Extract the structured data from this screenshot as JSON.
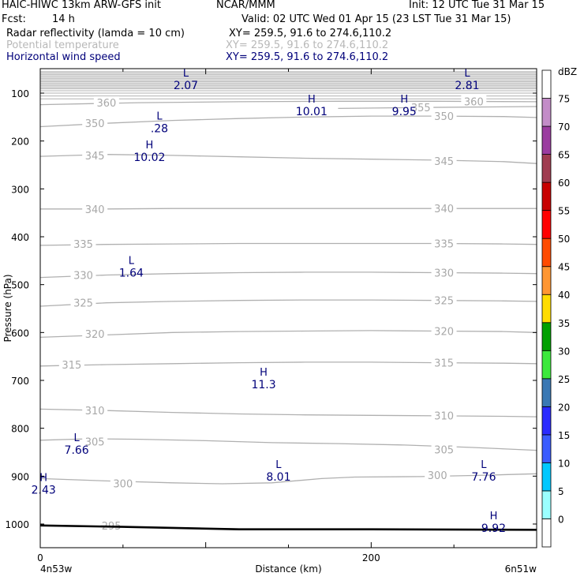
{
  "header": {
    "title_left": "HAIC-HIWC 13km ARW-GFS init",
    "title_org": "NCAR/MMM",
    "init": "Init: 12 UTC Tue 31 Mar 15",
    "fcst_label": "Fcst:",
    "fcst_value": "14 h",
    "valid": "Valid: 02 UTC Wed 01 Apr 15 (23 LST Tue 31 Mar 15)",
    "fields": [
      {
        "name": "Radar reflectivity (lamda = 10 cm)",
        "xy": "XY= 259.5, 91.6 to 274.6,110.2",
        "color": "#000000"
      },
      {
        "name": "Potential temperature",
        "xy": "XY= 259.5, 91.6 to 274.6,110.2",
        "color": "#b8b8b8"
      },
      {
        "name": "Horizontal wind speed",
        "xy": "XY= 259.5, 91.6 to 274.6,110.2",
        "color": "#00007a"
      }
    ]
  },
  "colors": {
    "theta": "#b0b0b0",
    "wind": "#00007a",
    "terrain": "#000000"
  },
  "chart_data": {
    "type": "cross-section",
    "ylabel": "Pressure (hPa)",
    "xlabel": "Distance (km)",
    "x_start_label": "4n53w",
    "x_end_label": "6n51w",
    "xlim": [
      0,
      300
    ],
    "x_ticks": [
      {
        "v": 0,
        "label": "0"
      },
      {
        "v": 200,
        "label": "200"
      }
    ],
    "y_ticks": [
      100,
      200,
      300,
      400,
      500,
      600,
      700,
      800,
      900,
      1000
    ],
    "ylim": [
      50,
      1020
    ],
    "theta_contours": [
      {
        "value": 295,
        "points": [
          [
            0,
            1003
          ],
          [
            40,
            1005
          ],
          [
            80,
            1008
          ],
          [
            120,
            1010
          ],
          [
            160,
            1011
          ],
          [
            200,
            1011
          ],
          [
            240,
            1011
          ],
          [
            280,
            1012
          ],
          [
            300,
            1012
          ]
        ],
        "labels": [
          [
            43,
            1003,
            "295"
          ]
        ]
      },
      {
        "value": 300,
        "points": [
          [
            0,
            905
          ],
          [
            40,
            910
          ],
          [
            80,
            914
          ],
          [
            110,
            916
          ],
          [
            140,
            914
          ],
          [
            170,
            905
          ],
          [
            190,
            902
          ],
          [
            230,
            901
          ],
          [
            270,
            898
          ],
          [
            300,
            895
          ]
        ],
        "labels": [
          [
            50,
            915,
            "300"
          ],
          [
            240,
            898,
            "300"
          ]
        ]
      },
      {
        "value": 305,
        "points": [
          [
            0,
            825
          ],
          [
            30,
            822
          ],
          [
            60,
            823
          ],
          [
            100,
            826
          ],
          [
            140,
            830
          ],
          [
            180,
            832
          ],
          [
            220,
            835
          ],
          [
            260,
            840
          ],
          [
            300,
            846
          ]
        ],
        "labels": [
          [
            33,
            828,
            "305"
          ],
          [
            244,
            844,
            "305"
          ]
        ]
      },
      {
        "value": 310,
        "points": [
          [
            0,
            760
          ],
          [
            40,
            763
          ],
          [
            80,
            767
          ],
          [
            120,
            770
          ],
          [
            160,
            772
          ],
          [
            200,
            773
          ],
          [
            240,
            774
          ],
          [
            280,
            775
          ],
          [
            300,
            776
          ]
        ],
        "labels": [
          [
            33,
            763,
            "310"
          ],
          [
            244,
            773,
            "310"
          ]
        ]
      },
      {
        "value": 315,
        "points": [
          [
            0,
            670
          ],
          [
            40,
            667
          ],
          [
            80,
            665
          ],
          [
            120,
            663
          ],
          [
            160,
            662
          ],
          [
            200,
            662
          ],
          [
            240,
            663
          ],
          [
            280,
            664
          ],
          [
            300,
            665
          ]
        ],
        "labels": [
          [
            19,
            667,
            "315"
          ],
          [
            244,
            663,
            "315"
          ]
        ]
      },
      {
        "value": 320,
        "points": [
          [
            0,
            610
          ],
          [
            40,
            605
          ],
          [
            80,
            600
          ],
          [
            120,
            598
          ],
          [
            160,
            597
          ],
          [
            200,
            596
          ],
          [
            240,
            597
          ],
          [
            280,
            598
          ],
          [
            300,
            600
          ]
        ],
        "labels": [
          [
            33,
            603,
            "320"
          ],
          [
            244,
            597,
            "320"
          ]
        ]
      },
      {
        "value": 325,
        "points": [
          [
            0,
            545
          ],
          [
            40,
            538
          ],
          [
            80,
            535
          ],
          [
            120,
            533
          ],
          [
            160,
            532
          ],
          [
            200,
            532
          ],
          [
            240,
            533
          ],
          [
            280,
            534
          ],
          [
            300,
            535
          ]
        ],
        "labels": [
          [
            26,
            538,
            "325"
          ],
          [
            244,
            533,
            "325"
          ]
        ]
      },
      {
        "value": 330,
        "points": [
          [
            0,
            485
          ],
          [
            40,
            480
          ],
          [
            80,
            477
          ],
          [
            120,
            475
          ],
          [
            160,
            474
          ],
          [
            200,
            474
          ],
          [
            240,
            475
          ],
          [
            280,
            476
          ],
          [
            300,
            477
          ]
        ],
        "labels": [
          [
            26,
            480,
            "330"
          ],
          [
            244,
            475,
            "330"
          ]
        ]
      },
      {
        "value": 335,
        "points": [
          [
            0,
            418
          ],
          [
            40,
            416
          ],
          [
            80,
            415
          ],
          [
            120,
            414
          ],
          [
            160,
            414
          ],
          [
            200,
            414
          ],
          [
            240,
            414
          ],
          [
            280,
            415
          ],
          [
            300,
            416
          ]
        ],
        "labels": [
          [
            26,
            415,
            "335"
          ],
          [
            244,
            414,
            "335"
          ]
        ]
      },
      {
        "value": 340,
        "points": [
          [
            0,
            342
          ],
          [
            40,
            342
          ],
          [
            80,
            341
          ],
          [
            120,
            341
          ],
          [
            160,
            341
          ],
          [
            200,
            341
          ],
          [
            240,
            341
          ],
          [
            280,
            341
          ],
          [
            300,
            341
          ]
        ],
        "labels": [
          [
            33,
            342,
            "340"
          ],
          [
            244,
            341,
            "340"
          ]
        ]
      },
      {
        "value": 345,
        "points": [
          [
            0,
            232
          ],
          [
            40,
            228
          ],
          [
            80,
            230
          ],
          [
            120,
            233
          ],
          [
            160,
            236
          ],
          [
            200,
            238
          ],
          [
            240,
            240
          ],
          [
            280,
            243
          ],
          [
            300,
            247
          ]
        ],
        "labels": [
          [
            33,
            230,
            "345"
          ],
          [
            244,
            242,
            "345"
          ]
        ]
      },
      {
        "value": 350,
        "points": [
          [
            0,
            170
          ],
          [
            40,
            163
          ],
          [
            80,
            157
          ],
          [
            120,
            153
          ],
          [
            160,
            150
          ],
          [
            200,
            148
          ],
          [
            240,
            148
          ],
          [
            280,
            149
          ],
          [
            300,
            151
          ]
        ],
        "labels": [
          [
            33,
            163,
            "350"
          ],
          [
            244,
            148,
            "350"
          ]
        ]
      },
      {
        "value": 355,
        "points": [
          [
            180,
            132
          ],
          [
            230,
            130
          ],
          [
            300,
            128
          ]
        ],
        "labels": [
          [
            230,
            130,
            "355"
          ]
        ]
      },
      {
        "value": 360,
        "points": [
          [
            0,
            124
          ],
          [
            60,
            120
          ],
          [
            120,
            118
          ],
          [
            180,
            117
          ],
          [
            240,
            117
          ],
          [
            300,
            118
          ]
        ],
        "labels": [
          [
            40,
            120,
            "360"
          ],
          [
            262,
            117,
            "360"
          ]
        ]
      }
    ],
    "stratosphere_lines_hpa": [
      55,
      58,
      61,
      64,
      67,
      70,
      73,
      76,
      79,
      82,
      85,
      88,
      91,
      95,
      100,
      106,
      112
    ],
    "wind_extrema": [
      {
        "type": "L",
        "value": "2.07",
        "x": 88,
        "p": 75
      },
      {
        "type": "L",
        "value": "2.81",
        "x": 258,
        "p": 75
      },
      {
        "type": "H",
        "value": "10.01",
        "x": 164,
        "p": 130
      },
      {
        "type": "H",
        "value": "9.95",
        "x": 220,
        "p": 130
      },
      {
        "type": "L",
        "value": ".28",
        "x": 72,
        "p": 165
      },
      {
        "type": "H",
        "value": "10.02",
        "x": 66,
        "p": 225
      },
      {
        "type": "L",
        "value": "1.64",
        "x": 55,
        "p": 467
      },
      {
        "type": "H",
        "value": "11.3",
        "x": 135,
        "p": 700
      },
      {
        "type": "L",
        "value": "7.66",
        "x": 22,
        "p": 837
      },
      {
        "type": "L",
        "value": "8.01",
        "x": 144,
        "p": 893
      },
      {
        "type": "L",
        "value": "7.76",
        "x": 268,
        "p": 893
      },
      {
        "type": "H",
        "value": "2.43",
        "x": 2,
        "p": 920
      },
      {
        "type": "H",
        "value": "9.92",
        "x": 274,
        "p": 1000
      }
    ],
    "terrain_hpa": [
      [
        0,
        1003
      ],
      [
        50,
        1006
      ],
      [
        120,
        1011
      ],
      [
        200,
        1011
      ],
      [
        300,
        1012
      ]
    ],
    "colorbar": {
      "unit": "dBZ",
      "levels": [
        "0",
        "5",
        "10",
        "15",
        "20",
        "25",
        "30",
        "35",
        "40",
        "45",
        "50",
        "55",
        "60",
        "65",
        "70",
        "75"
      ],
      "colors": [
        "#ffffff",
        "#9bffff",
        "#00c8ff",
        "#3a5cff",
        "#2a2aff",
        "#3a78b4",
        "#3ce83c",
        "#00a000",
        "#ffdc00",
        "#ff9632",
        "#ff4b00",
        "#ff0000",
        "#c80000",
        "#a03c50",
        "#9b3ca0",
        "#c38cc8",
        "#ffffff"
      ]
    }
  }
}
